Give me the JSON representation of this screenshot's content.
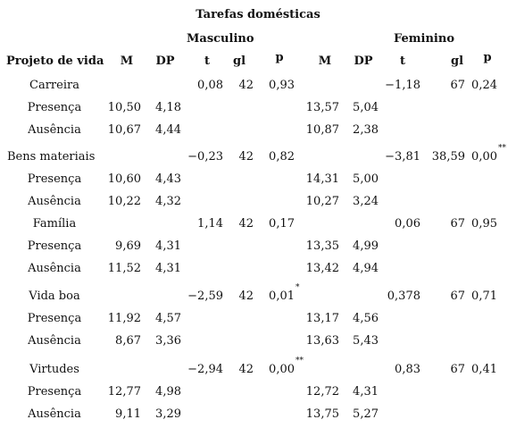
{
  "title": "Tarefas domésticas",
  "groups": {
    "male": "Masculino",
    "female": "Feminino"
  },
  "headers": {
    "row": "Projeto de vida",
    "m_M": "M",
    "m_DP": "DP",
    "m_t": "t",
    "m_gl": "gl",
    "m_p": "p",
    "f_M": "M",
    "f_DP": "DP",
    "f_t": "t",
    "f_gl": "gl",
    "f_p": "p"
  },
  "rows": [
    {
      "label": "Carreira",
      "m_t": "0,08",
      "m_gl": "42",
      "m_p": "0,93",
      "f_t": "−1,18",
      "f_gl": "67",
      "f_p": "0,24"
    },
    {
      "label": "Presença",
      "m_M": "10,50",
      "m_DP": "4,18",
      "f_M": "13,57",
      "f_DP": "5,04"
    },
    {
      "label": "Ausência",
      "m_M": "10,67",
      "m_DP": "4,44",
      "f_M": "10,87",
      "f_DP": "2,38"
    },
    {
      "label": "Bens materiais",
      "m_t": "−0,23",
      "m_gl": "42",
      "m_p": "0,82",
      "f_t": "−3,81",
      "f_gl": "38,59",
      "f_p": "0,00",
      "f_p_sup": "**"
    },
    {
      "label": "Presença",
      "m_M": "10,60",
      "m_DP": "4,43",
      "f_M": "14,31",
      "f_DP": "5,00"
    },
    {
      "label": "Ausência",
      "m_M": "10,22",
      "m_DP": "4,32",
      "f_M": "10,27",
      "f_DP": "3,24"
    },
    {
      "label": "Família",
      "m_t": "1,14",
      "m_gl": "42",
      "m_p": "0,17",
      "f_t": "0,06",
      "f_gl": "67",
      "f_p": "0,95"
    },
    {
      "label": "Presença",
      "m_M": "9,69",
      "m_DP": "4,31",
      "f_M": "13,35",
      "f_DP": "4,99"
    },
    {
      "label": "Ausência",
      "m_M": "11,52",
      "m_DP": "4,31",
      "f_M": "13,42",
      "f_DP": "4,94"
    },
    {
      "label": "Vida boa",
      "m_t": "−2,59",
      "m_gl": "42",
      "m_p": "0,01",
      "m_p_sup": "*",
      "f_t": "0,378",
      "f_gl": "67",
      "f_p": "0,71"
    },
    {
      "label": "Presença",
      "m_M": "11,92",
      "m_DP": "4,57",
      "f_M": "13,17",
      "f_DP": "4,56"
    },
    {
      "label": "Ausência",
      "m_M": "8,67",
      "m_DP": "3,36",
      "f_M": "13,63",
      "f_DP": "5,43"
    },
    {
      "label": "Virtudes",
      "m_t": "−2,94",
      "m_gl": "42",
      "m_p": "0,00",
      "m_p_sup": "**",
      "f_t": "0,83",
      "f_gl": "67",
      "f_p": "0,41"
    },
    {
      "label": "Presença",
      "m_M": "12,77",
      "m_DP": "4,98",
      "f_M": "12,72",
      "f_DP": "4,31"
    },
    {
      "label": "Ausência",
      "m_M": "9,11",
      "m_DP": "3,29",
      "f_M": "13,75",
      "f_DP": "5,27"
    }
  ]
}
